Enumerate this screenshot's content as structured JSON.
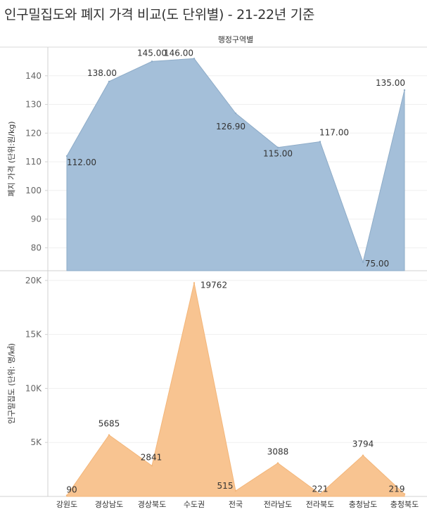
{
  "title": "인구밀집도와 폐지 가격 비교(도 단위별) - 21-22년 기준",
  "column_header": "행정구역별",
  "colors": {
    "price": "#a4bfd9",
    "price_line": "#8eacc8",
    "density": "#f8c491",
    "density_line": "#f3b67a"
  },
  "chart_data": [
    {
      "type": "area",
      "panel": "top",
      "ylabel": "폐지 가격 (단위:원/kg)",
      "categories": [
        "강원도",
        "경상남도",
        "경상북도",
        "수도권",
        "전국",
        "전라남도",
        "전라북도",
        "충청남도",
        "충청북도"
      ],
      "series": [
        {
          "values": [
            112.0,
            138.0,
            145.0,
            146.0,
            126.9,
            115.0,
            117.0,
            75.0,
            135.0
          ]
        }
      ],
      "data_labels": [
        "112.00",
        "138.00",
        "145.00",
        "146.00",
        "126.90",
        "115.00",
        "117.00",
        "75.00",
        "135.00"
      ],
      "yticks": [
        80,
        90,
        100,
        110,
        120,
        130,
        140
      ],
      "ytick_labels": [
        "80",
        "90",
        "100",
        "110",
        "120",
        "130",
        "140"
      ],
      "ylim": [
        72,
        150
      ],
      "grid": true
    },
    {
      "type": "area",
      "panel": "bottom",
      "ylabel": "인구밀집도 (단위: 명/㎢)",
      "categories": [
        "강원도",
        "경상남도",
        "경상북도",
        "수도권",
        "전국",
        "전라남도",
        "전라북도",
        "충청남도",
        "충청북도"
      ],
      "series": [
        {
          "values": [
            90,
            5685,
            2841,
            19762,
            515,
            3088,
            221,
            3794,
            219
          ]
        }
      ],
      "data_labels": [
        "90",
        "5685",
        "2841",
        "19762",
        "515",
        "3088",
        "221",
        "3794",
        "219"
      ],
      "yticks": [
        5000,
        10000,
        15000,
        20000
      ],
      "ytick_labels": [
        "5K",
        "10K",
        "15K",
        "20K"
      ],
      "ylim": [
        0,
        20900
      ],
      "grid": true
    }
  ]
}
